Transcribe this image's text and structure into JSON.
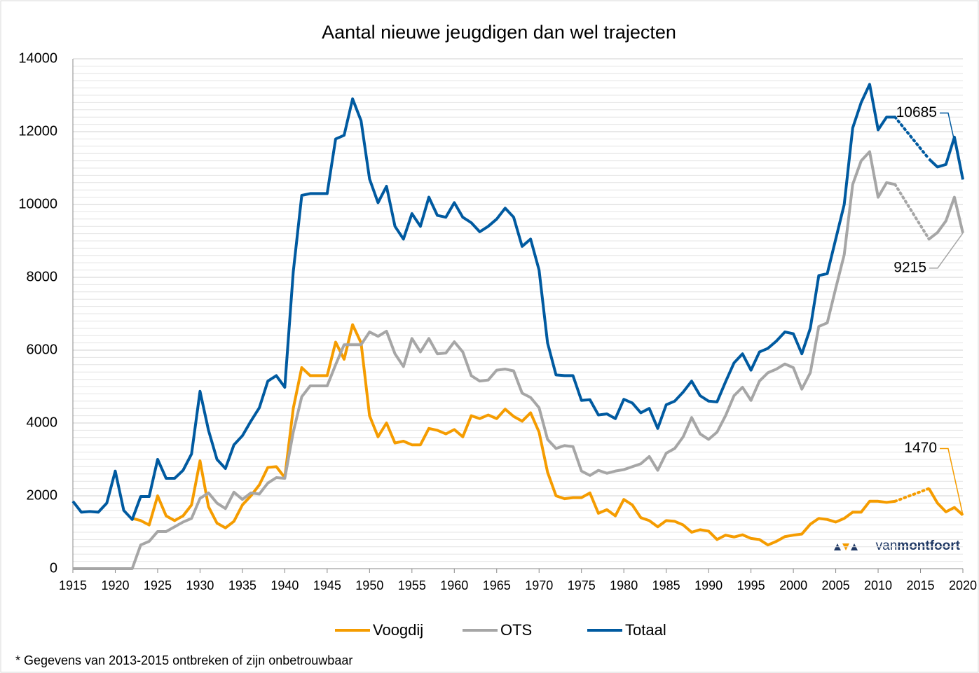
{
  "chart_data": {
    "type": "line",
    "title": "Aantal nieuwe jeugdigen dan wel trajecten",
    "footnote": "* Gegevens  van 2013-2015  ontbreken of zijn onbetrouwbaar",
    "logo": {
      "prefix": "van",
      "name": "montfoort"
    },
    "x": [
      1915,
      1916,
      1917,
      1918,
      1919,
      1920,
      1921,
      1922,
      1923,
      1924,
      1925,
      1926,
      1927,
      1928,
      1929,
      1930,
      1931,
      1932,
      1933,
      1934,
      1935,
      1936,
      1937,
      1938,
      1939,
      1940,
      1941,
      1942,
      1943,
      1944,
      1945,
      1946,
      1947,
      1948,
      1949,
      1950,
      1951,
      1952,
      1953,
      1954,
      1955,
      1956,
      1957,
      1958,
      1959,
      1960,
      1961,
      1962,
      1963,
      1964,
      1965,
      1966,
      1967,
      1968,
      1969,
      1970,
      1971,
      1972,
      1973,
      1974,
      1975,
      1976,
      1977,
      1978,
      1979,
      1980,
      1981,
      1982,
      1983,
      1984,
      1985,
      1986,
      1987,
      1988,
      1989,
      1990,
      1991,
      1992,
      1993,
      1994,
      1995,
      1996,
      1997,
      1998,
      1999,
      2000,
      2001,
      2002,
      2003,
      2004,
      2005,
      2006,
      2007,
      2008,
      2009,
      2010,
      2011,
      2012,
      2013,
      2014,
      2015,
      2016,
      2017,
      2018,
      2019,
      2020
    ],
    "series": [
      {
        "name": "Voogdij",
        "color": "#f59c00",
        "values": [
          null,
          null,
          null,
          null,
          null,
          null,
          null,
          1380,
          1320,
          1200,
          2000,
          1450,
          1320,
          1450,
          1750,
          2960,
          1700,
          1250,
          1120,
          1300,
          1750,
          2000,
          2300,
          2780,
          2800,
          2500,
          4400,
          5520,
          5300,
          5300,
          5300,
          6220,
          5750,
          6700,
          6200,
          4200,
          3620,
          4000,
          3450,
          3500,
          3400,
          3400,
          3850,
          3800,
          3700,
          3820,
          3620,
          4200,
          4120,
          4220,
          4120,
          4380,
          4180,
          4050,
          4280,
          3750,
          2650,
          2000,
          1920,
          1950,
          1950,
          2080,
          1520,
          1620,
          1450,
          1900,
          1750,
          1400,
          1320,
          1150,
          1320,
          1300,
          1200,
          1000,
          1070,
          1030,
          800,
          920,
          870,
          930,
          830,
          800,
          650,
          750,
          880,
          920,
          950,
          1220,
          1380,
          1350,
          1280,
          1380,
          1550,
          1550,
          1850,
          1850,
          1820,
          1850,
          null,
          null,
          null,
          2200,
          1800,
          1560,
          1680,
          1470
        ]
      },
      {
        "name": "OTS",
        "color": "#a6a6a6",
        "values": [
          0,
          0,
          0,
          0,
          0,
          0,
          0,
          0,
          650,
          750,
          1020,
          1020,
          1150,
          1280,
          1380,
          1930,
          2080,
          1800,
          1650,
          2100,
          1900,
          2080,
          2050,
          2350,
          2500,
          2480,
          3750,
          4720,
          5020,
          5020,
          5020,
          5600,
          6150,
          6150,
          6150,
          6500,
          6380,
          6520,
          5900,
          5550,
          6320,
          5950,
          6320,
          5900,
          5920,
          6230,
          5950,
          5300,
          5150,
          5180,
          5450,
          5480,
          5430,
          4820,
          4700,
          4420,
          3550,
          3300,
          3380,
          3350,
          2680,
          2560,
          2700,
          2620,
          2680,
          2720,
          2800,
          2880,
          3080,
          2700,
          3170,
          3300,
          3620,
          4150,
          3700,
          3550,
          3750,
          4200,
          4750,
          4980,
          4620,
          5150,
          5380,
          5480,
          5620,
          5520,
          4930,
          5380,
          6650,
          6750,
          7700,
          8620,
          10550,
          11200,
          11450,
          10200,
          10600,
          10550,
          null,
          null,
          null,
          9050,
          9230,
          9550,
          10200,
          9215
        ]
      },
      {
        "name": "Totaal",
        "color": "#005aa0",
        "values": [
          1850,
          1550,
          1570,
          1550,
          1800,
          2680,
          1600,
          1350,
          1980,
          1980,
          3000,
          2480,
          2480,
          2700,
          3150,
          4870,
          3800,
          3000,
          2750,
          3400,
          3650,
          4050,
          4420,
          5150,
          5300,
          4980,
          8150,
          10250,
          10300,
          10300,
          10300,
          11800,
          11900,
          12900,
          12300,
          10700,
          10050,
          10500,
          9400,
          9050,
          9750,
          9400,
          10200,
          9700,
          9650,
          10050,
          9650,
          9500,
          9250,
          9400,
          9600,
          9900,
          9650,
          8850,
          9050,
          8200,
          6200,
          5320,
          5300,
          5300,
          4620,
          4640,
          4220,
          4250,
          4120,
          4650,
          4550,
          4280,
          4400,
          3850,
          4500,
          4600,
          4850,
          5150,
          4750,
          4600,
          4580,
          5130,
          5650,
          5900,
          5450,
          5950,
          6050,
          6250,
          6500,
          6450,
          5900,
          6600,
          8050,
          8100,
          9050,
          10000,
          12100,
          12800,
          13300,
          12050,
          12400,
          12400,
          null,
          null,
          null,
          11250,
          11030,
          11100,
          11850,
          10685
        ]
      }
    ],
    "xlim": [
      1915,
      2020
    ],
    "xticks": [
      1915,
      1920,
      1925,
      1930,
      1935,
      1940,
      1945,
      1950,
      1955,
      1960,
      1965,
      1970,
      1975,
      1980,
      1985,
      1990,
      1995,
      2000,
      2005,
      2010,
      2015,
      2020
    ],
    "ylim": [
      0,
      14000
    ],
    "yticks": [
      0,
      2000,
      4000,
      6000,
      8000,
      10000,
      12000,
      14000
    ],
    "grid": true,
    "minor_grid_step": 200,
    "connect_gaps": "dotted",
    "label_last": true,
    "legend": "bottom"
  }
}
